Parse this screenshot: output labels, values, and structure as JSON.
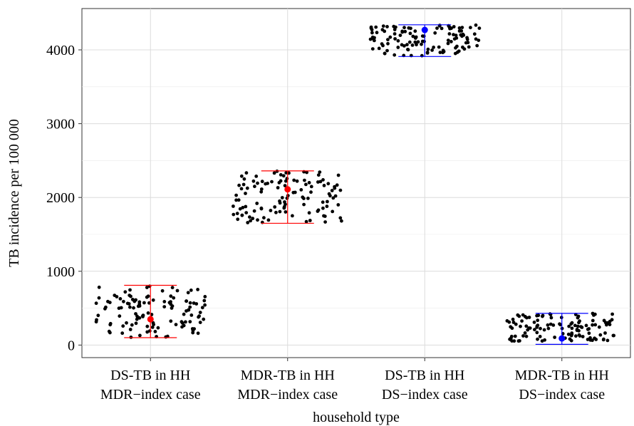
{
  "chart_data": {
    "type": "scatter",
    "title": "",
    "xlabel": "household type",
    "ylabel": "TB incidence per 100 000",
    "ylim": [
      -170,
      4560
    ],
    "yticks": [
      0,
      1000,
      2000,
      3000,
      4000
    ],
    "ytick_labels": [
      "0",
      "1000",
      "2000",
      "3000",
      "4000"
    ],
    "grid": true,
    "categories": [
      {
        "line1": "DS-TB in HH",
        "line2": "MDR−index case"
      },
      {
        "line1": "MDR-TB in HH",
        "line2": "MDR−index case"
      },
      {
        "line1": "DS-TB in HH",
        "line2": "DS−index case"
      },
      {
        "line1": "MDR-TB in HH",
        "line2": "DS−index case"
      }
    ],
    "series": [
      {
        "category_index": 0,
        "n_points": 120,
        "value_range": [
          100,
          800
        ],
        "point_estimate": 350,
        "interval": [
          100,
          810
        ],
        "color": "#ff0000"
      },
      {
        "category_index": 1,
        "n_points": 120,
        "value_range": [
          1650,
          2360
        ],
        "point_estimate": 2110,
        "interval": [
          1650,
          2360
        ],
        "color": "#ff0000"
      },
      {
        "category_index": 2,
        "n_points": 120,
        "value_range": [
          3920,
          4340
        ],
        "point_estimate": 4270,
        "interval": [
          3910,
          4340
        ],
        "color": "#0000ff"
      },
      {
        "category_index": 3,
        "n_points": 120,
        "value_range": [
          50,
          430
        ],
        "point_estimate": 90,
        "interval": [
          10,
          430
        ],
        "color": "#0000ff"
      }
    ],
    "point_color": "#000000"
  }
}
